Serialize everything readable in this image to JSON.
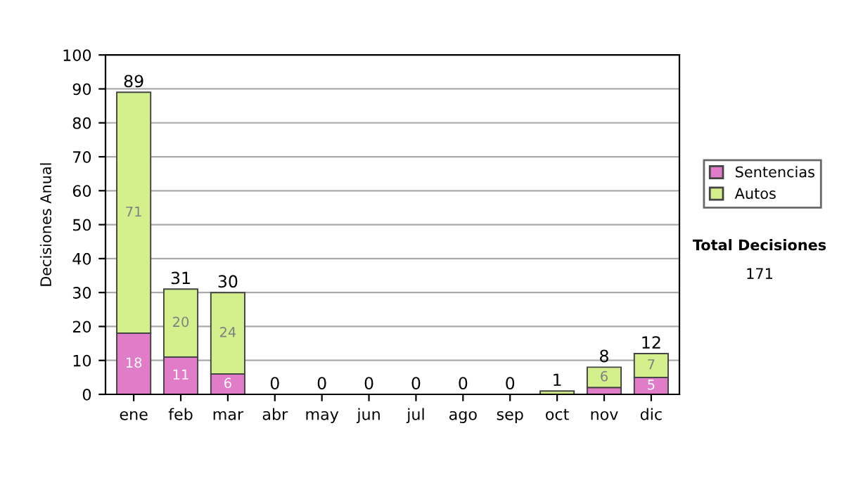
{
  "chart_data": {
    "type": "bar",
    "stacked": true,
    "ylabel": "Decisiones Anual",
    "categories": [
      "ene",
      "feb",
      "mar",
      "abr",
      "may",
      "jun",
      "jul",
      "ago",
      "sep",
      "oct",
      "nov",
      "dic"
    ],
    "series": [
      {
        "name": "Sentencias",
        "color": "#e07cc8",
        "values": [
          18,
          11,
          6,
          0,
          0,
          0,
          0,
          0,
          0,
          0,
          2,
          5
        ],
        "value_labels": [
          "18",
          "11",
          "6",
          null,
          null,
          null,
          null,
          null,
          null,
          null,
          null,
          "5"
        ]
      },
      {
        "name": "Autos",
        "color": "#d4f08c",
        "values": [
          71,
          20,
          24,
          0,
          0,
          0,
          0,
          0,
          0,
          1,
          6,
          7
        ],
        "value_labels": [
          "71",
          "20",
          "24",
          null,
          null,
          null,
          null,
          null,
          null,
          null,
          "6",
          "7"
        ]
      }
    ],
    "totals": [
      "89",
      "31",
      "30",
      "0",
      "0",
      "0",
      "0",
      "0",
      "0",
      "1",
      "8",
      "12"
    ],
    "ylim": [
      0,
      100
    ],
    "yticks": [
      0,
      10,
      20,
      30,
      40,
      50,
      60,
      70,
      80,
      90,
      100
    ],
    "grid": "y",
    "legend": "right",
    "annotations": [
      "Total Decisiones",
      "171"
    ]
  }
}
